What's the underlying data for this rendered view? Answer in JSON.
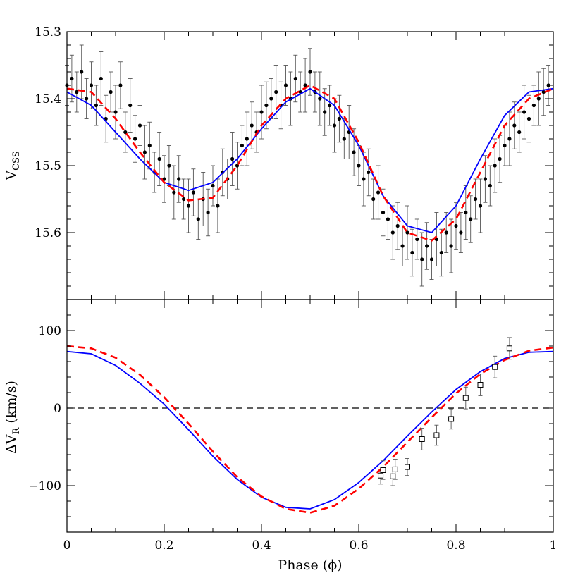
{
  "chart_data": [
    {
      "type": "scatter",
      "panel": "top",
      "ylabel_main": "V",
      "ylabel_sub": "CSS",
      "xlim": [
        0,
        1
      ],
      "ylim": [
        15.7,
        15.3
      ],
      "y_inverted": true,
      "yticks": [
        15.3,
        15.4,
        15.5,
        15.6
      ],
      "ytick_labels": [
        "15.3",
        "15.4",
        "15.5",
        "15.6"
      ],
      "grid": false,
      "colors": {
        "points": "#000000",
        "model_solid": "#0000ff",
        "model_dashed": "#ff0000",
        "errorbar": "#555555"
      },
      "series": [
        {
          "style": "points-with-errorbars",
          "x": [
            0.0,
            0.01,
            0.02,
            0.03,
            0.04,
            0.05,
            0.06,
            0.07,
            0.08,
            0.09,
            0.1,
            0.11,
            0.12,
            0.13,
            0.14,
            0.15,
            0.16,
            0.17,
            0.18,
            0.19,
            0.2,
            0.21,
            0.22,
            0.23,
            0.24,
            0.25,
            0.26,
            0.27,
            0.28,
            0.29,
            0.3,
            0.31,
            0.32,
            0.33,
            0.34,
            0.35,
            0.36,
            0.37,
            0.38,
            0.39,
            0.4,
            0.41,
            0.42,
            0.43,
            0.44,
            0.45,
            0.46,
            0.47,
            0.48,
            0.49,
            0.5,
            0.51,
            0.52,
            0.53,
            0.54,
            0.55,
            0.56,
            0.57,
            0.58,
            0.59,
            0.6,
            0.61,
            0.62,
            0.63,
            0.64,
            0.65,
            0.66,
            0.67,
            0.68,
            0.69,
            0.7,
            0.71,
            0.72,
            0.73,
            0.74,
            0.75,
            0.76,
            0.77,
            0.78,
            0.79,
            0.8,
            0.81,
            0.82,
            0.83,
            0.84,
            0.85,
            0.86,
            0.87,
            0.88,
            0.89,
            0.9,
            0.91,
            0.92,
            0.93,
            0.94,
            0.95,
            0.96,
            0.97,
            0.98,
            0.99
          ],
          "y": [
            15.38,
            15.37,
            15.39,
            15.36,
            15.4,
            15.38,
            15.41,
            15.37,
            15.43,
            15.39,
            15.42,
            15.38,
            15.45,
            15.41,
            15.46,
            15.44,
            15.48,
            15.47,
            15.51,
            15.49,
            15.52,
            15.5,
            15.54,
            15.52,
            15.55,
            15.56,
            15.54,
            15.58,
            15.55,
            15.57,
            15.53,
            15.56,
            15.51,
            15.52,
            15.49,
            15.5,
            15.47,
            15.46,
            15.44,
            15.45,
            15.42,
            15.41,
            15.4,
            15.39,
            15.41,
            15.38,
            15.4,
            15.37,
            15.39,
            15.38,
            15.36,
            15.39,
            15.4,
            15.42,
            15.41,
            15.44,
            15.43,
            15.46,
            15.45,
            15.48,
            15.5,
            15.52,
            15.51,
            15.55,
            15.54,
            15.57,
            15.58,
            15.6,
            15.59,
            15.62,
            15.6,
            15.63,
            15.61,
            15.64,
            15.62,
            15.64,
            15.61,
            15.63,
            15.6,
            15.62,
            15.59,
            15.6,
            15.57,
            15.58,
            15.55,
            15.56,
            15.52,
            15.53,
            15.5,
            15.49,
            15.47,
            15.46,
            15.44,
            15.45,
            15.42,
            15.43,
            15.41,
            15.4,
            15.39,
            15.38
          ],
          "err": [
            0.03,
            0.035,
            0.03,
            0.04,
            0.03,
            0.035,
            0.03,
            0.04,
            0.035,
            0.03,
            0.04,
            0.035,
            0.03,
            0.04,
            0.035,
            0.03,
            0.04,
            0.035,
            0.03,
            0.04,
            0.035,
            0.03,
            0.04,
            0.035,
            0.03,
            0.04,
            0.035,
            0.03,
            0.04,
            0.035,
            0.03,
            0.04,
            0.035,
            0.03,
            0.04,
            0.035,
            0.03,
            0.04,
            0.035,
            0.03,
            0.04,
            0.035,
            0.03,
            0.04,
            0.035,
            0.03,
            0.04,
            0.035,
            0.03,
            0.04,
            0.035,
            0.03,
            0.04,
            0.035,
            0.03,
            0.04,
            0.035,
            0.03,
            0.04,
            0.035,
            0.03,
            0.04,
            0.035,
            0.03,
            0.04,
            0.035,
            0.03,
            0.04,
            0.035,
            0.03,
            0.04,
            0.035,
            0.03,
            0.04,
            0.035,
            0.03,
            0.04,
            0.035,
            0.03,
            0.04,
            0.035,
            0.03,
            0.04,
            0.035,
            0.03,
            0.04,
            0.035,
            0.03,
            0.04,
            0.035,
            0.03,
            0.04,
            0.035,
            0.03,
            0.04,
            0.035,
            0.03,
            0.04,
            0.035,
            0.03
          ]
        },
        {
          "style": "line-solid",
          "color": "#0000ff",
          "x": [
            0.0,
            0.05,
            0.1,
            0.15,
            0.2,
            0.25,
            0.3,
            0.35,
            0.4,
            0.45,
            0.5,
            0.55,
            0.6,
            0.65,
            0.7,
            0.75,
            0.8,
            0.85,
            0.9,
            0.95,
            1.0
          ],
          "y": [
            15.39,
            15.41,
            15.45,
            15.49,
            15.525,
            15.537,
            15.525,
            15.49,
            15.445,
            15.405,
            15.385,
            15.41,
            15.47,
            15.545,
            15.59,
            15.6,
            15.56,
            15.49,
            15.425,
            15.39,
            15.385
          ]
        },
        {
          "style": "line-dashed",
          "color": "#ff0000",
          "x": [
            0.0,
            0.05,
            0.1,
            0.15,
            0.2,
            0.25,
            0.3,
            0.35,
            0.4,
            0.45,
            0.5,
            0.55,
            0.6,
            0.65,
            0.7,
            0.75,
            0.8,
            0.85,
            0.9,
            0.95,
            1.0
          ],
          "y": [
            15.385,
            15.39,
            15.43,
            15.48,
            15.525,
            15.552,
            15.548,
            15.5,
            15.44,
            15.4,
            15.38,
            15.4,
            15.465,
            15.545,
            15.6,
            15.612,
            15.58,
            15.51,
            15.44,
            15.4,
            15.385
          ]
        }
      ]
    },
    {
      "type": "line",
      "panel": "bottom",
      "xlabel": "Phase (ϕ)",
      "ylabel_main": "ΔV",
      "ylabel_sub": "R",
      "ylabel_units": " (km/s)",
      "xlim": [
        0,
        1
      ],
      "ylim": [
        -160,
        140
      ],
      "xticks": [
        0,
        0.2,
        0.4,
        0.6,
        0.8,
        1
      ],
      "xtick_labels": [
        "0",
        "0.2",
        "0.4",
        "0.6",
        "0.8",
        "1"
      ],
      "yticks": [
        -100,
        0,
        100
      ],
      "ytick_labels": [
        "−100",
        "0",
        "100"
      ],
      "reference_line": {
        "y": 0,
        "style": "dashed",
        "color": "#000000"
      },
      "grid": false,
      "series": [
        {
          "style": "line-solid",
          "color": "#0000ff",
          "x": [
            0.0,
            0.05,
            0.1,
            0.15,
            0.2,
            0.25,
            0.3,
            0.35,
            0.4,
            0.45,
            0.5,
            0.55,
            0.6,
            0.65,
            0.7,
            0.75,
            0.8,
            0.85,
            0.9,
            0.95,
            1.0
          ],
          "y": [
            73,
            70,
            55,
            32,
            5,
            -28,
            -62,
            -92,
            -115,
            -128,
            -130,
            -118,
            -96,
            -68,
            -36,
            -5,
            24,
            47,
            64,
            72,
            73
          ]
        },
        {
          "style": "line-dashed",
          "color": "#ff0000",
          "x": [
            0.0,
            0.05,
            0.1,
            0.15,
            0.2,
            0.25,
            0.3,
            0.35,
            0.4,
            0.45,
            0.5,
            0.55,
            0.6,
            0.65,
            0.7,
            0.75,
            0.8,
            0.85,
            0.9,
            0.95,
            1.0
          ],
          "y": [
            80,
            77,
            65,
            43,
            14,
            -20,
            -56,
            -89,
            -114,
            -130,
            -135,
            -126,
            -104,
            -76,
            -44,
            -12,
            19,
            44,
            62,
            74,
            78
          ]
        },
        {
          "style": "open-squares-with-errorbars",
          "x": [
            0.645,
            0.65,
            0.67,
            0.675,
            0.7,
            0.73,
            0.76,
            0.79,
            0.82,
            0.85,
            0.88,
            0.91
          ],
          "y": [
            -87,
            -80,
            -88,
            -79,
            -76,
            -40,
            -35,
            -14,
            13,
            30,
            53,
            77
          ],
          "err": [
            11,
            12,
            12,
            13,
            11,
            14,
            13,
            13,
            14,
            14,
            14,
            14
          ]
        }
      ]
    }
  ]
}
